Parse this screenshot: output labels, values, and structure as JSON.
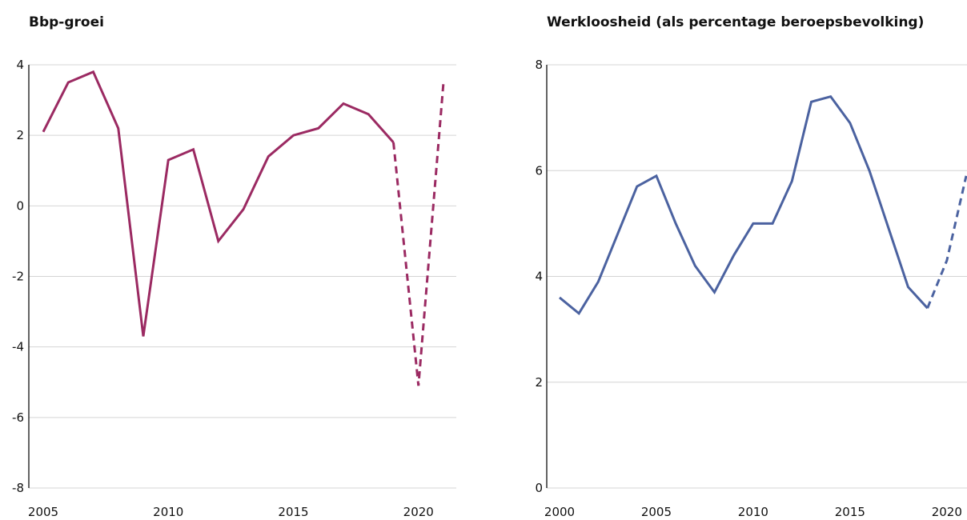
{
  "chart_data": [
    {
      "type": "line",
      "title": "Bbp-groei",
      "xlabel": "",
      "ylabel": "",
      "xlim": [
        2005,
        2021
      ],
      "ylim": [
        -8,
        4
      ],
      "yticks": [
        4,
        2,
        0,
        -2,
        -4,
        -6,
        -8
      ],
      "xticks": [
        2005,
        2010,
        2015,
        2020
      ],
      "grid": true,
      "legend": "none",
      "series": [
        {
          "style": "solid",
          "color": "#9b2a62",
          "x": [
            2005,
            2006,
            2007,
            2008,
            2009,
            2010,
            2011,
            2012,
            2013,
            2014,
            2015,
            2016,
            2017,
            2018,
            2019
          ],
          "y": [
            2.1,
            3.5,
            3.8,
            2.2,
            -3.7,
            1.3,
            1.6,
            -1.0,
            -0.1,
            1.4,
            2.0,
            2.2,
            2.9,
            2.6,
            1.8
          ]
        },
        {
          "style": "dashed",
          "color": "#9b2a62",
          "x": [
            2019,
            2020,
            2021
          ],
          "y": [
            1.8,
            -5.1,
            3.5
          ]
        }
      ]
    },
    {
      "type": "line",
      "title": "Werkloosheid (als percentage beroepsbevolking)",
      "xlabel": "",
      "ylabel": "",
      "xlim": [
        2000,
        2021
      ],
      "ylim": [
        0,
        8
      ],
      "yticks": [
        8,
        6,
        4,
        2,
        0
      ],
      "xticks": [
        2000,
        2005,
        2010,
        2015,
        2020
      ],
      "grid": true,
      "legend": "none",
      "series": [
        {
          "style": "solid",
          "color": "#4b62a0",
          "x": [
            2000,
            2001,
            2002,
            2003,
            2004,
            2005,
            2006,
            2007,
            2008,
            2009,
            2010,
            2011,
            2012,
            2013,
            2014,
            2015,
            2016,
            2017,
            2018,
            2019
          ],
          "y": [
            3.6,
            3.3,
            3.9,
            4.8,
            5.7,
            5.9,
            5.0,
            4.2,
            3.7,
            4.4,
            5.0,
            5.0,
            5.8,
            7.3,
            7.4,
            6.9,
            6.0,
            4.9,
            3.8,
            3.4
          ]
        },
        {
          "style": "dashed",
          "color": "#4b62a0",
          "x": [
            2019,
            2020,
            2021
          ],
          "y": [
            3.4,
            4.3,
            5.9
          ]
        }
      ]
    }
  ]
}
